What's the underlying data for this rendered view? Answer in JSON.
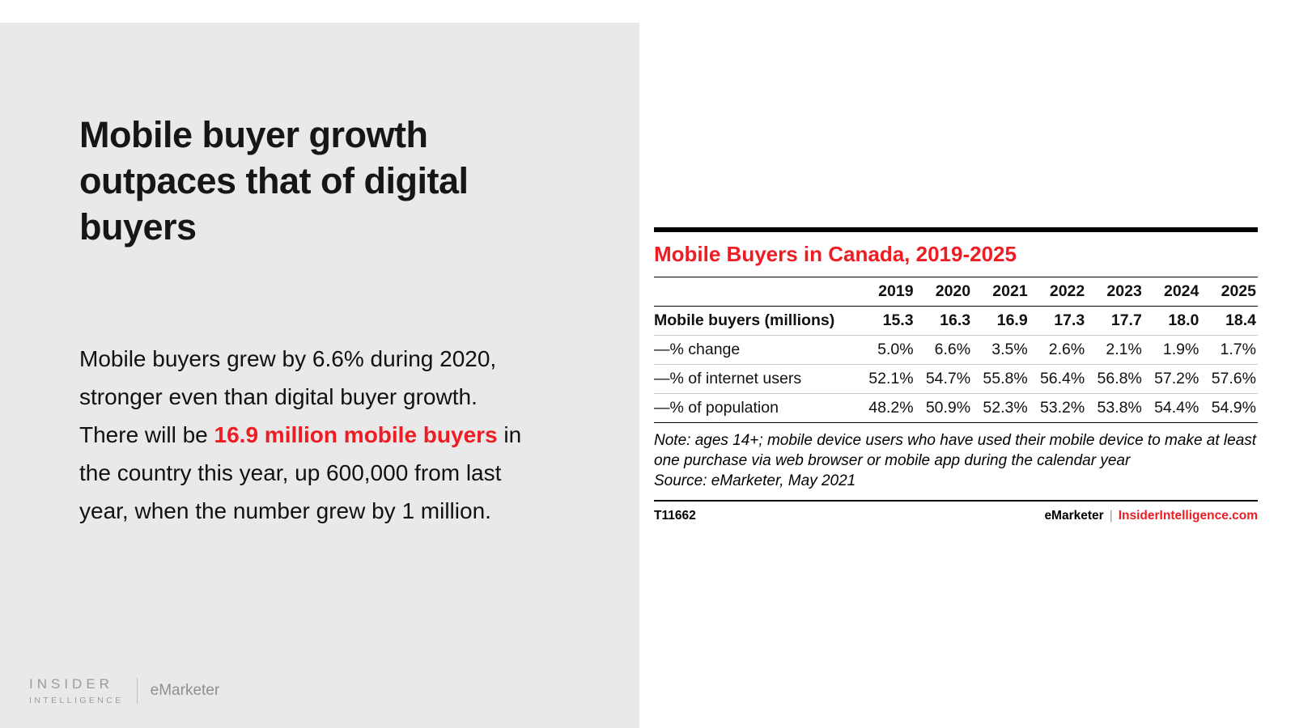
{
  "left_panel": {
    "heading": "Mobile buyer growth outpaces that of digital buyers",
    "paragraph": {
      "pre": "Mobile buyers grew by 6.6% during 2020, stronger even than digital buyer growth. There will be ",
      "highlight": "16.9 million mobile buyers",
      "post": " in the country this year, up 600,000 from last year, when the number grew by 1 million."
    },
    "logo": {
      "insider": "INSIDER",
      "intelligence": "INTELLIGENCE",
      "emarketer": "eMarketer"
    }
  },
  "chart": {
    "title": "Mobile Buyers in Canada, 2019-2025",
    "note": "Note: ages 14+; mobile device users who have used their mobile device to make at least one purchase via web browser or mobile app during the calendar year",
    "source": "Source: eMarketer, May 2021",
    "id": "T11662",
    "footer_brand": "eMarketer",
    "footer_sep": "|",
    "footer_site": "InsiderIntelligence.com"
  },
  "chart_data": {
    "type": "table",
    "title": "Mobile Buyers in Canada, 2019-2025",
    "columns": [
      "2019",
      "2020",
      "2021",
      "2022",
      "2023",
      "2024",
      "2025"
    ],
    "rows": [
      {
        "label": "Mobile buyers (millions)",
        "bold": true,
        "values": [
          "15.3",
          "16.3",
          "16.9",
          "17.3",
          "17.7",
          "18.0",
          "18.4"
        ]
      },
      {
        "label": "—% change",
        "bold": false,
        "values": [
          "5.0%",
          "6.6%",
          "3.5%",
          "2.6%",
          "2.1%",
          "1.9%",
          "1.7%"
        ]
      },
      {
        "label": "—% of internet users",
        "bold": false,
        "values": [
          "52.1%",
          "54.7%",
          "55.8%",
          "56.4%",
          "56.8%",
          "57.2%",
          "57.6%"
        ]
      },
      {
        "label": "—% of population",
        "bold": false,
        "values": [
          "48.2%",
          "50.9%",
          "52.3%",
          "53.2%",
          "53.8%",
          "54.4%",
          "54.9%"
        ]
      }
    ]
  },
  "colors": {
    "accent_red": "#ee1c23",
    "left_bg": "#e9e9e9"
  }
}
